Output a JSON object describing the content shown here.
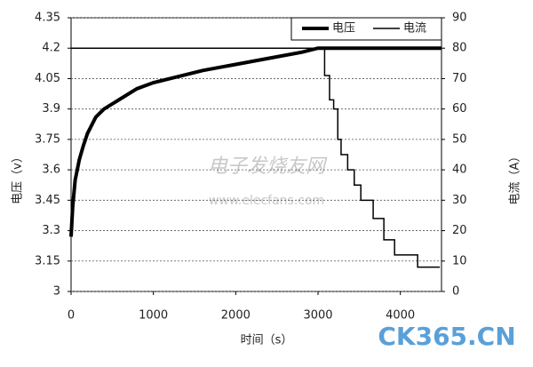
{
  "chart_data": {
    "type": "line",
    "xlabel": "时间（s）",
    "ylabel": "电压（v）",
    "y2label": "电流（A）",
    "xlim": [
      0,
      4500
    ],
    "xticks": [
      0,
      1000,
      2000,
      3000,
      4000
    ],
    "ylim": [
      3,
      4.35
    ],
    "yticks": [
      3,
      3.15,
      3.3,
      3.45,
      3.6,
      3.75,
      3.9,
      4.05,
      4.2,
      4.35
    ],
    "y2lim": [
      0,
      90
    ],
    "y2ticks": [
      0,
      10,
      20,
      30,
      40,
      50,
      60,
      70,
      80,
      90
    ],
    "grid": true,
    "legend": "top-right",
    "series": [
      {
        "name": "电压",
        "color": "#000000",
        "axis": "y",
        "x": [
          0,
          20,
          50,
          100,
          150,
          200,
          300,
          400,
          600,
          800,
          1000,
          1300,
          1600,
          2000,
          2400,
          2800,
          3000,
          3500,
          4000,
          4500
        ],
        "values": [
          3.27,
          3.42,
          3.55,
          3.65,
          3.72,
          3.78,
          3.86,
          3.9,
          3.95,
          4.0,
          4.03,
          4.06,
          4.09,
          4.12,
          4.15,
          4.18,
          4.2,
          4.2,
          4.2,
          4.2
        ]
      },
      {
        "name": "电流",
        "color": "#000000",
        "axis": "y2",
        "x": [
          0,
          3080,
          3080,
          3140,
          3140,
          3190,
          3190,
          3240,
          3240,
          3280,
          3280,
          3360,
          3360,
          3440,
          3440,
          3520,
          3520,
          3670,
          3670,
          3800,
          3800,
          3930,
          3930,
          4210,
          4210,
          4480
        ],
        "values": [
          80,
          80,
          71,
          71,
          63,
          63,
          60,
          60,
          50,
          50,
          45,
          45,
          40,
          40,
          35,
          35,
          30,
          30,
          24,
          24,
          17,
          17,
          12,
          12,
          8,
          8
        ]
      }
    ],
    "watermarks": [
      "电子发烧友网",
      "www.elecfans.com",
      "CK365.CN"
    ]
  }
}
